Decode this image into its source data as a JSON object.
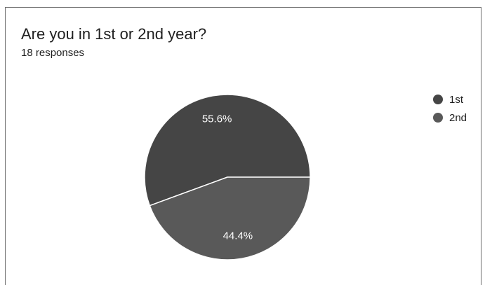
{
  "header": {
    "title": "Are you in 1st or 2nd year?",
    "subtitle": "18 responses"
  },
  "colors": {
    "first": "#454545",
    "second": "#595959",
    "label": "#ffffff",
    "separator": "#ffffff"
  },
  "chart_data": {
    "type": "pie",
    "title": "Are you in 1st or 2nd year?",
    "subtitle": "18 responses",
    "legend_position": "right",
    "slices": [
      {
        "name": "1st",
        "percent": 55.6,
        "label": "55.6%"
      },
      {
        "name": "2nd",
        "percent": 44.4,
        "label": "44.4%"
      }
    ]
  }
}
